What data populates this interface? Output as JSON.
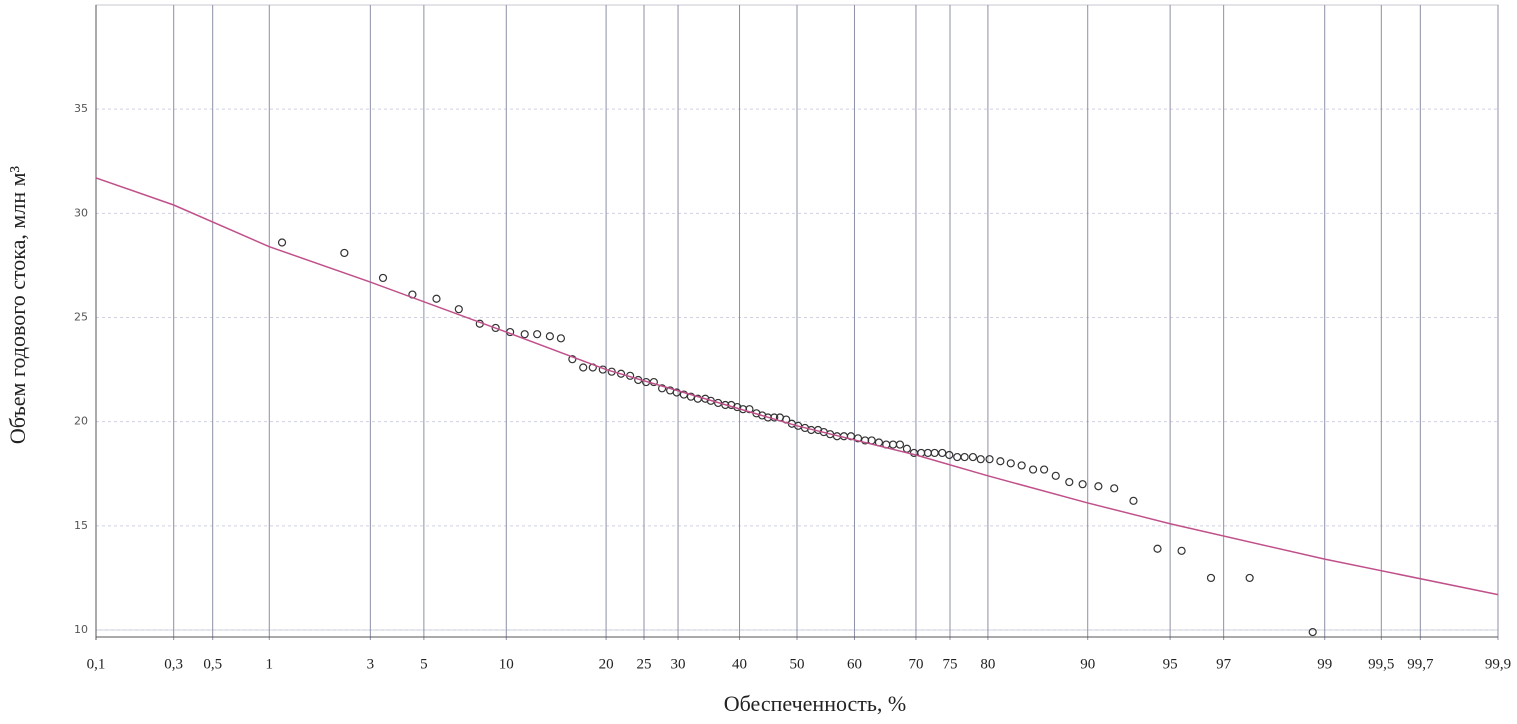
{
  "chart_data": {
    "type": "scatter",
    "xlabel": "Обеспеченность, %",
    "ylabel": "Объем годового стока, млн м³",
    "xscale": "probability",
    "xlim": [
      0.1,
      99.9
    ],
    "xticks": [
      {
        "value": 0.1,
        "label": "0,1"
      },
      {
        "value": 0.3,
        "label": "0,3"
      },
      {
        "value": 0.5,
        "label": "0,5"
      },
      1,
      3,
      5,
      10,
      20,
      25,
      30,
      40,
      50,
      60,
      70,
      75,
      80,
      90,
      95,
      97,
      99,
      {
        "value": 99.5,
        "label": "99,5"
      },
      {
        "value": 99.7,
        "label": "99,7"
      },
      {
        "value": 99.9,
        "label": "99,9"
      }
    ],
    "ylim": [
      10,
      40
    ],
    "yticks": [
      10,
      15,
      20,
      25,
      30,
      35
    ],
    "grid": true,
    "series": [
      {
        "kind": "scatter",
        "color": "#333333",
        "x": [
          1.16,
          2.3,
          3.4,
          4.5,
          5.6,
          6.8,
          8.1,
          9.2,
          10.3,
          11.5,
          12.6,
          13.8,
          14.9,
          16.1,
          17.3,
          18.4,
          19.6,
          20.7,
          21.9,
          23.1,
          24.2,
          25.3,
          26.4,
          27.6,
          28.8,
          29.8,
          30.9,
          32.0,
          33.1,
          34.3,
          35.2,
          36.4,
          37.6,
          38.6,
          39.6,
          40.6,
          41.7,
          42.9,
          43.9,
          44.9,
          46.0,
          47.0,
          48.1,
          49.1,
          50.2,
          51.4,
          52.5,
          53.7,
          54.7,
          55.8,
          57.0,
          58.2,
          59.4,
          60.6,
          61.8,
          62.9,
          64.1,
          65.3,
          66.4,
          67.5,
          68.6,
          69.7,
          70.8,
          71.8,
          72.8,
          73.9,
          74.9,
          76.0,
          77.0,
          78.1,
          79.1,
          80.2,
          81.5,
          82.7,
          83.9,
          85.1,
          86.2,
          87.3,
          88.5,
          89.6,
          90.8,
          91.9,
          93.1,
          94.4,
          95.5,
          96.6,
          97.7,
          98.85
        ],
        "values": [
          28.6,
          28.1,
          26.9,
          26.1,
          25.9,
          25.4,
          24.7,
          24.5,
          24.3,
          24.2,
          24.2,
          24.1,
          24.0,
          23.0,
          22.6,
          22.6,
          22.5,
          22.4,
          22.3,
          22.2,
          22.0,
          21.9,
          21.9,
          21.6,
          21.5,
          21.4,
          21.3,
          21.2,
          21.1,
          21.1,
          21.0,
          20.9,
          20.8,
          20.8,
          20.7,
          20.6,
          20.6,
          20.4,
          20.3,
          20.2,
          20.2,
          20.2,
          20.1,
          19.9,
          19.8,
          19.7,
          19.6,
          19.6,
          19.5,
          19.4,
          19.3,
          19.3,
          19.3,
          19.2,
          19.1,
          19.1,
          19.0,
          18.9,
          18.9,
          18.9,
          18.7,
          18.5,
          18.5,
          18.5,
          18.5,
          18.5,
          18.4,
          18.3,
          18.3,
          18.3,
          18.2,
          18.2,
          18.1,
          18.0,
          17.9,
          17.7,
          17.7,
          17.4,
          17.1,
          17.0,
          16.9,
          16.8,
          16.2,
          13.9,
          13.8,
          12.5,
          12.5,
          9.9
        ]
      },
      {
        "kind": "line",
        "color": "#c0508a",
        "x": [
          0.1,
          0.3,
          1,
          3,
          10,
          20,
          50,
          70,
          80,
          90,
          95,
          99,
          99.9
        ],
        "values": [
          31.7,
          30.4,
          28.4,
          26.7,
          24.3,
          22.5,
          19.8,
          18.4,
          17.4,
          16.1,
          15.1,
          13.4,
          11.7
        ]
      }
    ]
  }
}
